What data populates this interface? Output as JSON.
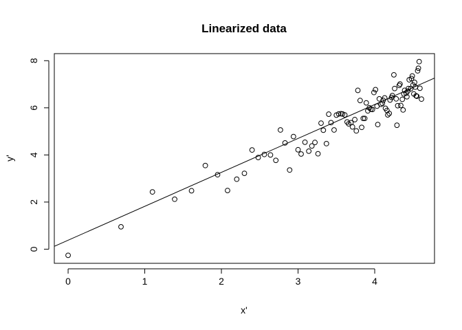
{
  "chart_data": {
    "type": "scatter",
    "title": "Linearized data",
    "xlabel": "x'",
    "ylabel": "y'",
    "xlim": [
      -0.18,
      4.78
    ],
    "ylim": [
      -0.6,
      8.3
    ],
    "xticks": [
      0,
      1,
      2,
      3,
      4
    ],
    "yticks": [
      0,
      2,
      4,
      6,
      8
    ],
    "grid": false,
    "legend": "none",
    "point_style": "open-circle",
    "series": [
      {
        "points": [
          [
            0.0,
            -0.26
          ],
          [
            0.69,
            0.95
          ],
          [
            1.1,
            2.43
          ],
          [
            1.39,
            2.12
          ],
          [
            1.61,
            2.48
          ],
          [
            1.79,
            3.55
          ],
          [
            1.95,
            3.16
          ],
          [
            2.08,
            2.49
          ],
          [
            2.2,
            2.97
          ],
          [
            2.3,
            3.22
          ],
          [
            2.4,
            4.21
          ],
          [
            2.48,
            3.89
          ],
          [
            2.56,
            4.02
          ],
          [
            2.64,
            4.0
          ],
          [
            2.71,
            3.77
          ],
          [
            2.77,
            5.06
          ],
          [
            2.83,
            4.51
          ],
          [
            2.89,
            3.36
          ],
          [
            2.94,
            4.78
          ],
          [
            3.0,
            4.22
          ],
          [
            3.04,
            4.04
          ],
          [
            3.09,
            4.54
          ],
          [
            3.14,
            4.16
          ],
          [
            3.18,
            4.38
          ],
          [
            3.22,
            4.53
          ],
          [
            3.26,
            4.05
          ],
          [
            3.3,
            5.35
          ],
          [
            3.33,
            5.05
          ],
          [
            3.37,
            4.48
          ],
          [
            3.4,
            5.73
          ],
          [
            3.43,
            5.37
          ],
          [
            3.47,
            5.06
          ],
          [
            3.5,
            5.69
          ],
          [
            3.53,
            5.74
          ],
          [
            3.56,
            5.75
          ],
          [
            3.58,
            5.74
          ],
          [
            3.61,
            5.7
          ],
          [
            3.64,
            5.4
          ],
          [
            3.66,
            5.32
          ],
          [
            3.69,
            5.37
          ],
          [
            3.71,
            5.19
          ],
          [
            3.74,
            5.5
          ],
          [
            3.76,
            5.02
          ],
          [
            3.78,
            6.74
          ],
          [
            3.81,
            6.31
          ],
          [
            3.83,
            5.17
          ],
          [
            3.85,
            5.55
          ],
          [
            3.87,
            5.55
          ],
          [
            3.89,
            6.21
          ],
          [
            3.91,
            5.87
          ],
          [
            3.93,
            6.0
          ],
          [
            3.95,
            5.94
          ],
          [
            3.97,
            5.93
          ],
          [
            3.99,
            6.65
          ],
          [
            4.01,
            6.77
          ],
          [
            4.03,
            6.07
          ],
          [
            4.04,
            5.29
          ],
          [
            4.06,
            6.38
          ],
          [
            4.08,
            6.15
          ],
          [
            4.1,
            6.19
          ],
          [
            4.11,
            6.32
          ],
          [
            4.13,
            6.42
          ],
          [
            4.14,
            5.98
          ],
          [
            4.16,
            5.89
          ],
          [
            4.17,
            5.7
          ],
          [
            4.19,
            5.76
          ],
          [
            4.2,
            6.33
          ],
          [
            4.22,
            6.44
          ],
          [
            4.23,
            6.52
          ],
          [
            4.25,
            7.4
          ],
          [
            4.26,
            6.82
          ],
          [
            4.28,
            6.38
          ],
          [
            4.29,
            5.26
          ],
          [
            4.3,
            6.09
          ],
          [
            4.32,
            6.95
          ],
          [
            4.33,
            7.01
          ],
          [
            4.34,
            6.1
          ],
          [
            4.36,
            6.36
          ],
          [
            4.37,
            5.91
          ],
          [
            4.38,
            6.59
          ],
          [
            4.39,
            6.74
          ],
          [
            4.41,
            6.62
          ],
          [
            4.42,
            6.47
          ],
          [
            4.43,
            6.71
          ],
          [
            4.44,
            6.82
          ],
          [
            4.45,
            7.19
          ],
          [
            4.47,
            6.81
          ],
          [
            4.48,
            7.24
          ],
          [
            4.49,
            7.35
          ],
          [
            4.5,
            6.97
          ],
          [
            4.51,
            6.59
          ],
          [
            4.52,
            7.08
          ],
          [
            4.53,
            6.88
          ],
          [
            4.54,
            6.51
          ],
          [
            4.55,
            6.49
          ],
          [
            4.56,
            7.57
          ],
          [
            4.57,
            7.68
          ],
          [
            4.58,
            7.96
          ],
          [
            4.59,
            6.83
          ],
          [
            4.61,
            6.37
          ]
        ]
      }
    ],
    "fit_line": {
      "intercept": 0.38,
      "slope": 1.44
    }
  }
}
